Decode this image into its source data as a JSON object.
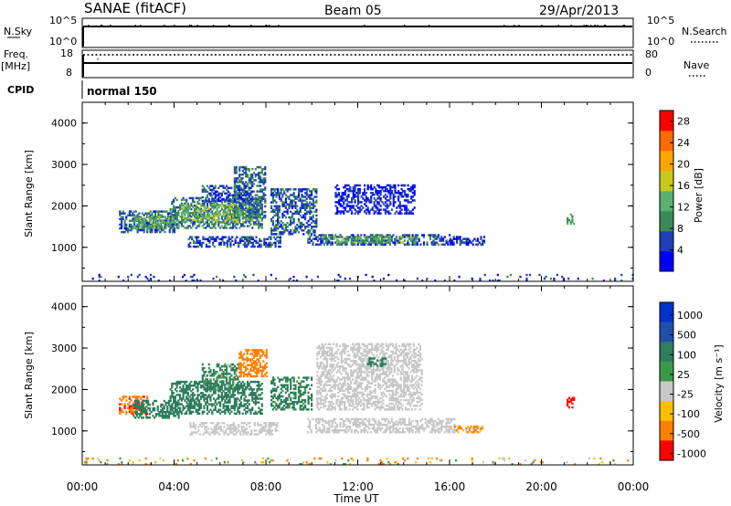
{
  "header": {
    "station": "SANAE (fitACF)",
    "beam": "Beam 05",
    "date": "29/Apr/2013"
  },
  "nsky": {
    "label": "N.Sky",
    "top_tick": "10^5",
    "bottom_tick": "10^0"
  },
  "nsearch": {
    "label": "N.Search",
    "top_tick": "10^5",
    "bottom_tick": "10^0"
  },
  "freq": {
    "label": "Freq.",
    "unit": "[MHz]",
    "top_tick": "18",
    "bottom_tick": "8"
  },
  "nave": {
    "label": "Nave",
    "top_tick": "80",
    "bottom_tick": "0"
  },
  "cpid": {
    "label": "CPID",
    "value": "normal 150"
  },
  "chart_data": [
    {
      "type": "heatmap",
      "panel": "power",
      "ylabel": "Slant Range [km]",
      "xlabel": "",
      "xlim": [
        "00:00",
        "24:00"
      ],
      "ylim": [
        180,
        4500
      ],
      "yticks": [
        "1000",
        "2000",
        "3000",
        "4000"
      ],
      "colorbar": {
        "label": "Power [dB]",
        "ticks": [
          "4",
          "8",
          "12",
          "16",
          "20",
          "24",
          "28"
        ],
        "range": [
          0,
          30
        ]
      },
      "regions": [
        {
          "t": [
            1.6,
            4.0
          ],
          "r": [
            1350,
            1850
          ],
          "level": 7
        },
        {
          "t": [
            2.2,
            4.3
          ],
          "r": [
            1450,
            1750
          ],
          "level": 13
        },
        {
          "t": [
            3.8,
            7.8
          ],
          "r": [
            1450,
            2200
          ],
          "level": 9
        },
        {
          "t": [
            4.3,
            7.4
          ],
          "r": [
            1600,
            2050
          ],
          "level": 14
        },
        {
          "t": [
            6.6,
            8.0
          ],
          "r": [
            1700,
            2950
          ],
          "level": 8
        },
        {
          "t": [
            5.2,
            7.4
          ],
          "r": [
            2100,
            2500
          ],
          "level": 6
        },
        {
          "t": [
            4.6,
            8.6
          ],
          "r": [
            1000,
            1250
          ],
          "level": 6
        },
        {
          "t": [
            8.2,
            10.2
          ],
          "r": [
            1300,
            2400
          ],
          "level": 7
        },
        {
          "t": [
            9.8,
            16.0
          ],
          "r": [
            1050,
            1300
          ],
          "level": 7
        },
        {
          "t": [
            10.5,
            14.6
          ],
          "r": [
            1100,
            1250
          ],
          "level": 13
        },
        {
          "t": [
            11.0,
            14.5
          ],
          "r": [
            1800,
            2500
          ],
          "level": 4
        },
        {
          "t": [
            16.0,
            17.5
          ],
          "r": [
            1050,
            1250
          ],
          "level": 5
        },
        {
          "t": [
            21.1,
            21.4
          ],
          "r": [
            1550,
            1800
          ],
          "level": 12
        },
        {
          "t": [
            0.0,
            24.0
          ],
          "r": [
            180,
            350
          ],
          "level": 5
        }
      ]
    },
    {
      "type": "heatmap",
      "panel": "velocity",
      "ylabel": "Slant Range [km]",
      "xlabel": "Time UT",
      "xticks": [
        "00:00",
        "04:00",
        "08:00",
        "12:00",
        "16:00",
        "20:00",
        "00:00"
      ],
      "xlim": [
        "00:00",
        "24:00"
      ],
      "ylim": [
        180,
        4500
      ],
      "yticks": [
        "1000",
        "2000",
        "3000",
        "4000"
      ],
      "colorbar": {
        "label": "Velocity [m s⁻¹]",
        "ticks": [
          "1000",
          "500",
          "100",
          "25",
          "-25",
          "-100",
          "-500",
          "-1000"
        ],
        "range": [
          -1200,
          1200
        ]
      },
      "ground_scatter_color": "#c8c8c8",
      "regions": [
        {
          "t": [
            1.6,
            2.8
          ],
          "r": [
            1400,
            1850
          ],
          "v": -450
        },
        {
          "t": [
            2.2,
            4.2
          ],
          "r": [
            1300,
            1750
          ],
          "v": 250
        },
        {
          "t": [
            3.8,
            7.8
          ],
          "r": [
            1400,
            2200
          ],
          "v": 300
        },
        {
          "t": [
            5.2,
            6.8
          ],
          "r": [
            2000,
            2600
          ],
          "v": 150
        },
        {
          "t": [
            6.8,
            8.0
          ],
          "r": [
            2300,
            2950
          ],
          "v": -350
        },
        {
          "t": [
            8.2,
            10.0
          ],
          "r": [
            1500,
            2300
          ],
          "v": 200
        },
        {
          "t": [
            4.6,
            8.5
          ],
          "r": [
            900,
            1200
          ],
          "v": 0,
          "gs": true
        },
        {
          "t": [
            9.8,
            16.2
          ],
          "r": [
            950,
            1300
          ],
          "v": 0,
          "gs": true
        },
        {
          "t": [
            10.2,
            14.8
          ],
          "r": [
            1500,
            3100
          ],
          "v": 0,
          "gs": true
        },
        {
          "t": [
            12.4,
            13.2
          ],
          "r": [
            2550,
            2750
          ],
          "v": 350
        },
        {
          "t": [
            16.2,
            17.4
          ],
          "r": [
            950,
            1100
          ],
          "v": -150
        },
        {
          "t": [
            21.1,
            21.4
          ],
          "r": [
            1550,
            1800
          ],
          "v": -900
        },
        {
          "t": [
            0.0,
            24.0
          ],
          "r": [
            180,
            350
          ],
          "v": -60
        }
      ]
    }
  ]
}
